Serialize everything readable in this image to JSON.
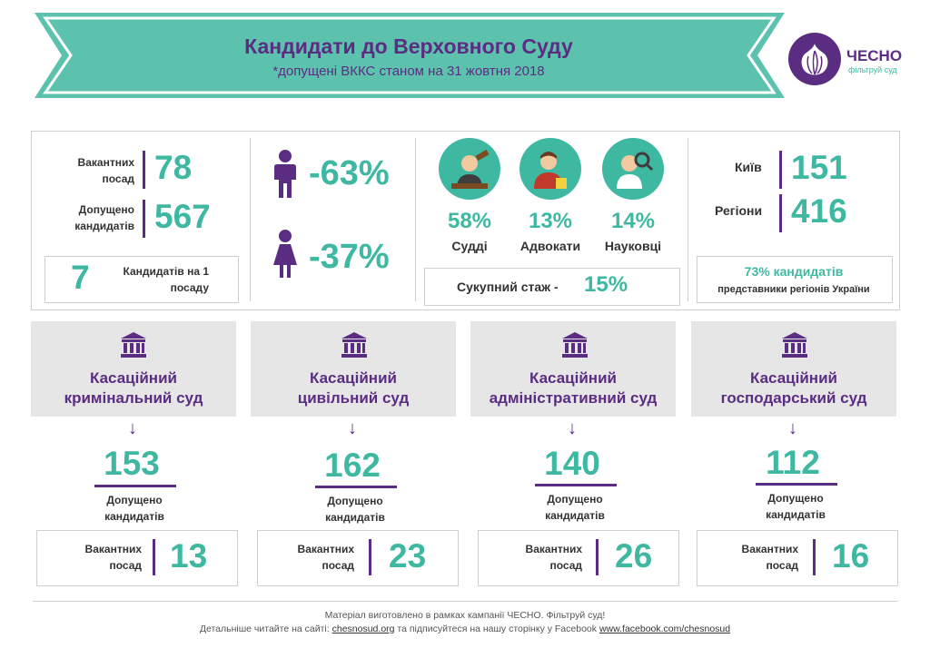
{
  "header": {
    "title": "Кандидати до Верховного Суду",
    "subtitle": "*допущені ВККС станом на 31 жовтня 2018"
  },
  "logo": {
    "name": "ЧЕСНО",
    "tagline": "фільтруй суд",
    "icon": "garlic-icon"
  },
  "stats": {
    "vacancies_label": "Вакантних посад",
    "vacancies_value": "78",
    "admitted_label": "Допущено кандидатів",
    "admitted_value": "567",
    "ratio_value": "7",
    "ratio_label": "Кандидатів на 1 посаду"
  },
  "gender": {
    "male_value": "-63%",
    "female_value": "-37%",
    "male_icon": "male-person-icon",
    "female_icon": "female-person-icon"
  },
  "professions": [
    {
      "icon": "judge-icon",
      "percent": "58%",
      "label": "Судді"
    },
    {
      "icon": "lawyer-icon",
      "percent": "13%",
      "label": "Адвокати"
    },
    {
      "icon": "scientist-icon",
      "percent": "14%",
      "label": "Науковці"
    }
  ],
  "experience": {
    "label": "Сукупний стаж -",
    "value": "15%"
  },
  "regions": {
    "kyiv_label": "Київ",
    "kyiv_value": "151",
    "regions_label": "Регіони",
    "regions_value": "416",
    "note_main": "73% кандидатів",
    "note_sub": "представники регіонів України"
  },
  "courts": [
    {
      "icon": "courthouse-icon",
      "name_line1": "Касаційний",
      "name_line2": "кримінальний суд",
      "admitted": "153",
      "admitted_label_1": "Допущено",
      "admitted_label_2": "кандидатів",
      "vac_label_1": "Вакантних",
      "vac_label_2": "посад",
      "vacancies": "13"
    },
    {
      "icon": "courthouse-icon",
      "name_line1": "Касаційний",
      "name_line2": "цивільний суд",
      "admitted": "162",
      "admitted_label_1": "Допущено",
      "admitted_label_2": "кандидатів",
      "vac_label_1": "Вакантних",
      "vac_label_2": "посад",
      "vacancies": "23"
    },
    {
      "icon": "courthouse-icon",
      "name_line1": "Касаційний",
      "name_line2": "адміністративний суд",
      "admitted": "140",
      "admitted_label_1": "Допущено",
      "admitted_label_2": "кандидатів",
      "vac_label_1": "Вакантних",
      "vac_label_2": "посад",
      "vacancies": "26"
    },
    {
      "icon": "courthouse-icon",
      "name_line1": "Касаційний",
      "name_line2": "господарський суд",
      "admitted": "112",
      "admitted_label_1": "Допущено",
      "admitted_label_2": "кандидатів",
      "vac_label_1": "Вакантних",
      "vac_label_2": "посад",
      "vacancies": "16"
    }
  ],
  "footer": {
    "line1": "Матеріал виготовлено в рамках кампанії ЧЕСНО. Фільтруй суд!",
    "line2_prefix": "Детальніше читайте на сайті:",
    "site_link": "chesnosud.org",
    "line2_middle": "та підписуйтеся на нашу сторінку у Facebook",
    "fb_link": "www.facebook.com/chesnosud"
  },
  "colors": {
    "teal": "#3fb8a1",
    "purple": "#5b2d82",
    "gray_box": "#e6e6e6"
  }
}
